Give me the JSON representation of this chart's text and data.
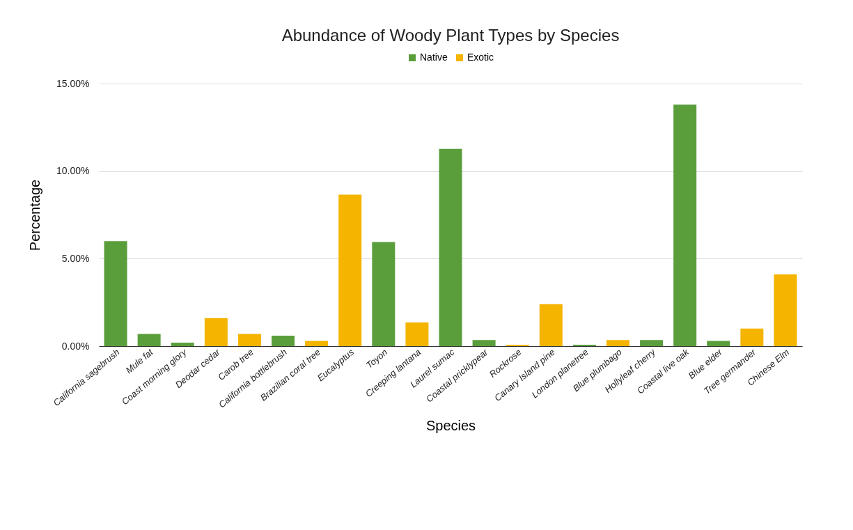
{
  "chart_data": {
    "type": "bar",
    "title": "Abundance of Woody Plant Types by Species",
    "xlabel": "Species",
    "ylabel": "Percentage",
    "categories": [
      "California sagebrush",
      "Mule fat",
      "Coast morning glory",
      "Deodar cedar",
      "Carob tree",
      "California bottlebrush",
      "Brazilian coral tree",
      "Eucalyptus",
      "Toyon",
      "Creeping lantana",
      "Laurel sumac",
      "Coastal pricklypear",
      "Rockrose",
      "Canary Island pine",
      "London planetree",
      "Blue plumbago",
      "Hollyleaf cherry",
      "Coastal live oak",
      "Blue elder",
      "Tree germander",
      "Chinese Elm"
    ],
    "series": [
      {
        "name": "Native",
        "color": "#5a9e3c",
        "values": [
          6.0,
          0.7,
          0.2,
          null,
          null,
          0.6,
          null,
          null,
          5.95,
          null,
          11.27,
          0.35,
          null,
          null,
          0.08,
          null,
          0.35,
          13.8,
          0.3,
          null,
          null
        ]
      },
      {
        "name": "Exotic",
        "color": "#f4b400",
        "values": [
          null,
          null,
          null,
          1.6,
          0.7,
          null,
          0.3,
          8.65,
          null,
          1.35,
          null,
          null,
          0.08,
          2.4,
          null,
          0.35,
          null,
          null,
          null,
          1.0,
          4.1
        ]
      }
    ],
    "ylim": [
      0,
      15
    ],
    "yticks": [
      {
        "value": 0,
        "label": "0.00%"
      },
      {
        "value": 5,
        "label": "5.00%"
      },
      {
        "value": 10,
        "label": "10.00%"
      },
      {
        "value": 15,
        "label": "15.00%"
      }
    ],
    "grid": "y",
    "legend": "top"
  }
}
